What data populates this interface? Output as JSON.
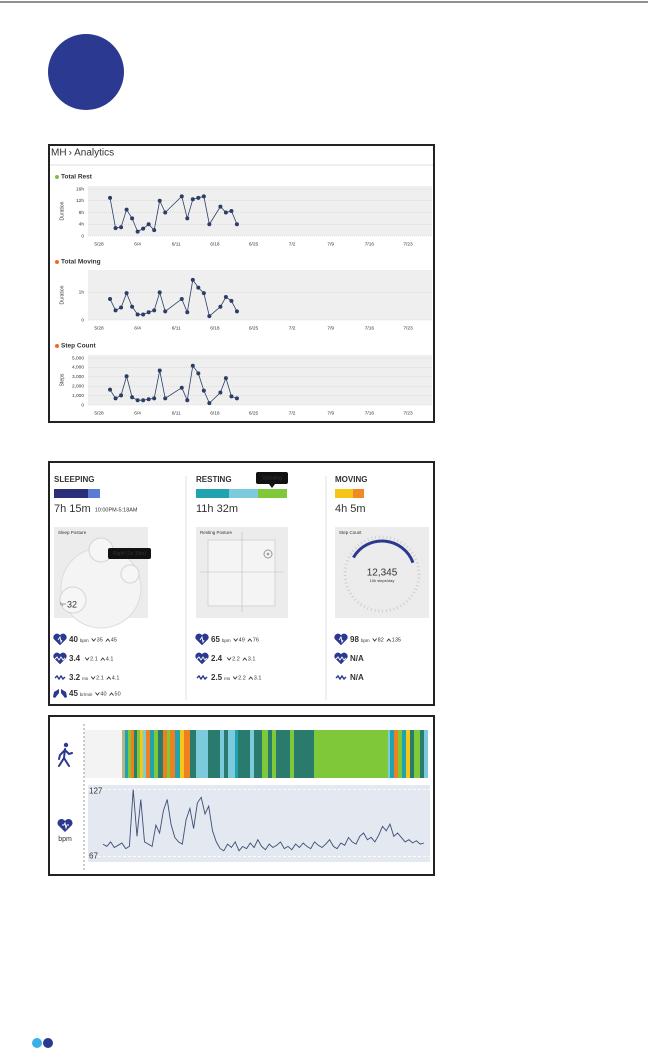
{
  "analytics": {
    "breadcrumb_root": "MH",
    "breadcrumb_page": "› Analytics",
    "x_ticks": [
      "5/28",
      "6/4",
      "6/11",
      "6/18",
      "6/25",
      "7/2",
      "7/9",
      "7/16",
      "7/23"
    ],
    "charts": [
      {
        "title": "Total Rest",
        "dot_color": "#7ac143",
        "y_axis_label": "Duration",
        "ylim": [
          0,
          16
        ],
        "yticks": [
          {
            "value": 16,
            "label": "16h"
          },
          {
            "value": 12,
            "label": "12h"
          },
          {
            "value": 8,
            "label": "8h"
          },
          {
            "value": 4,
            "label": "4h"
          },
          0
        ],
        "dates": [
          "5/30",
          "5/31",
          "6/1",
          "6/2",
          "6/3",
          "6/4",
          "6/5",
          "6/6",
          "6/7",
          "6/8",
          "6/9",
          "6/12",
          "6/13",
          "6/14",
          "6/15",
          "6/16",
          "6/17",
          "6/19",
          "6/20",
          "6/21",
          "6/22"
        ],
        "values": [
          13,
          2.7,
          3,
          9,
          6,
          1.5,
          2.5,
          4,
          2,
          12,
          8,
          13.5,
          6,
          12.5,
          13,
          13.5,
          4,
          10,
          8,
          8.5,
          4
        ]
      },
      {
        "title": "Total Moving",
        "dot_color": "#f26b21",
        "y_axis_label": "Duration",
        "ylim": [
          0,
          1.7
        ],
        "yticks": [
          {
            "value": 1,
            "label": "1h"
          },
          0
        ],
        "dates": [
          "5/30",
          "5/31",
          "6/1",
          "6/2",
          "6/3",
          "6/4",
          "6/5",
          "6/6",
          "6/7",
          "6/8",
          "6/9",
          "6/12",
          "6/13",
          "6/14",
          "6/15",
          "6/16",
          "6/17",
          "6/19",
          "6/20",
          "6/21",
          "6/22"
        ],
        "values": [
          0.76,
          0.35,
          0.45,
          0.97,
          0.48,
          0.2,
          0.2,
          0.28,
          0.35,
          1.0,
          0.31,
          0.76,
          0.28,
          1.45,
          1.17,
          0.97,
          0.14,
          0.48,
          0.83,
          0.69,
          0.31
        ]
      },
      {
        "title": "Step Count",
        "dot_color": "#f26b21",
        "y_axis_label": "Steps",
        "ylim": [
          0,
          5000
        ],
        "yticks": [
          {
            "value": 5000,
            "label": "5,000"
          },
          {
            "value": 4000,
            "label": "4,000"
          },
          {
            "value": 3000,
            "label": "3,000"
          },
          {
            "value": 2000,
            "label": "2,000"
          },
          {
            "value": 1000,
            "label": "1,000"
          },
          0
        ],
        "dates": [
          "5/30",
          "5/31",
          "6/1",
          "6/2",
          "6/3",
          "6/4",
          "6/5",
          "6/6",
          "6/7",
          "6/8",
          "6/9",
          "6/12",
          "6/13",
          "6/14",
          "6/15",
          "6/16",
          "6/17",
          "6/19",
          "6/20",
          "6/21",
          "6/22"
        ],
        "values": [
          1630,
          710,
          1020,
          3060,
          820,
          510,
          510,
          610,
          710,
          3670,
          710,
          1840,
          510,
          4180,
          3370,
          1530,
          200,
          1330,
          2860,
          920,
          710
        ]
      }
    ]
  },
  "summary": {
    "columns": [
      {
        "title": "SLEEPING",
        "duration": "7h 15m",
        "time_range": "10:00PM-5:18AM",
        "panel_title": "Sleep Posture",
        "tooltip": "Right (1h 39m)",
        "posture_count": 32,
        "metrics": [
          {
            "value": 40,
            "unit": "bpm",
            "low": 35,
            "high": 45
          },
          {
            "value": 3.4,
            "low": 2.1,
            "high": 4.1
          },
          {
            "value": 3.2,
            "unit": "ms",
            "low": 2.1,
            "high": 4.1
          },
          {
            "value": 45,
            "unit": "br/min",
            "low": 40,
            "high": 50
          }
        ]
      },
      {
        "title": "RESTING",
        "duration": "11h 32m",
        "tooltip": "Standing",
        "panel_title": "Resting Posture",
        "metrics": [
          {
            "value": 65,
            "unit": "bpm",
            "low": 49,
            "high": 76
          },
          {
            "value": 2.4,
            "low": 2.2,
            "high": 3.1
          },
          {
            "value": 2.5,
            "unit": "ms",
            "low": 2.2,
            "high": 3.1
          }
        ]
      },
      {
        "title": "MOVING",
        "duration": "4h 5m",
        "panel_title": "Step Count",
        "steps": "12,345",
        "steps_caption": "10k steps/day",
        "metrics": [
          {
            "value": 98,
            "unit": "bpm",
            "low": 82,
            "high": 135
          },
          {
            "value": "N/A"
          },
          {
            "value": "N/A"
          }
        ]
      }
    ]
  },
  "timeline": {
    "heart_rate": {
      "unit": "bpm",
      "ylim": [
        62,
        131
      ],
      "yticks": [
        127,
        67
      ],
      "values": [
        78,
        76,
        80,
        75,
        77,
        79,
        74,
        76,
        127,
        85,
        118,
        80,
        78,
        76,
        95,
        88,
        108,
        118,
        96,
        84,
        80,
        78,
        100,
        110,
        92,
        115,
        120,
        105,
        112,
        90,
        80,
        74,
        72,
        78,
        75,
        80,
        72,
        76,
        74,
        79,
        75,
        82,
        76,
        73,
        78,
        75,
        77,
        80,
        74,
        76,
        73,
        78,
        75,
        79,
        76,
        74,
        80,
        77,
        75,
        78,
        82,
        76,
        74,
        79,
        77,
        84,
        80,
        78,
        85,
        88,
        82,
        84,
        80,
        86,
        94,
        90,
        96,
        85,
        88,
        84,
        80,
        82,
        79,
        81,
        78,
        79
      ]
    }
  }
}
